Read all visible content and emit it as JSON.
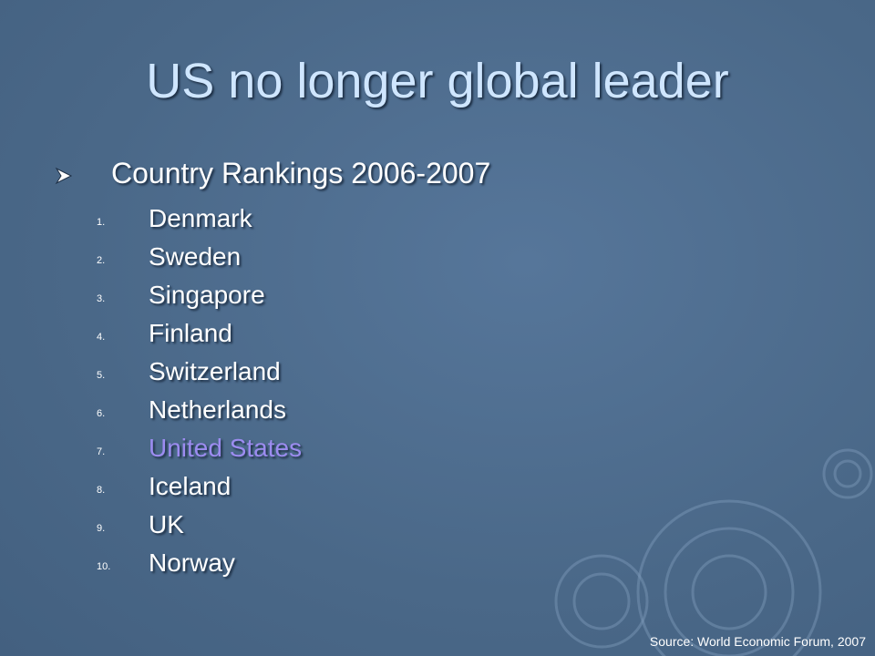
{
  "header": {
    "title": "US no longer global leader"
  },
  "content": {
    "heading": "Country Rankings 2006-2007",
    "items": [
      {
        "number": "1.",
        "name": "Denmark"
      },
      {
        "number": "2.",
        "name": "Sweden"
      },
      {
        "number": "3.",
        "name": "Singapore"
      },
      {
        "number": "4.",
        "name": "Finland"
      },
      {
        "number": "5.",
        "name": "Switzerland"
      },
      {
        "number": "6.",
        "name": "Netherlands"
      },
      {
        "number": "7.",
        "name": "United States"
      },
      {
        "number": "8.",
        "name": "Iceland"
      },
      {
        "number": "9.",
        "name": "UK"
      },
      {
        "number": "10.",
        "name": "Norway"
      }
    ]
  },
  "footer": {
    "source": "Source: World Economic Forum, 2007"
  }
}
